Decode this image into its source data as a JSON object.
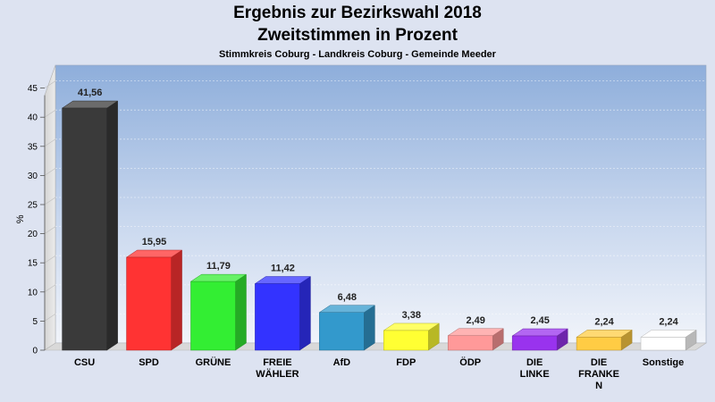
{
  "chart_data": {
    "type": "bar",
    "title": "Ergebnis zur Bezirkswahl 2018",
    "title2": "Zweitstimmen in Prozent",
    "subtitle": "Stimmkreis Coburg - Landkreis Coburg - Gemeinde Meeder",
    "ylabel": "%",
    "ylim": [
      0,
      45
    ],
    "yticks": [
      "0",
      "5",
      "10",
      "15",
      "20",
      "25",
      "30",
      "35",
      "40",
      "45"
    ],
    "categories": [
      [
        "CSU"
      ],
      [
        "SPD"
      ],
      [
        "GRÜNE"
      ],
      [
        "FREIE",
        "WÄHLER"
      ],
      [
        "AfD"
      ],
      [
        "FDP"
      ],
      [
        "ÖDP"
      ],
      [
        "DIE",
        "LINKE"
      ],
      [
        "DIE",
        "FRANKE",
        "N"
      ],
      [
        "Sonstige"
      ]
    ],
    "values": [
      41.56,
      15.95,
      11.79,
      11.42,
      6.48,
      3.38,
      2.49,
      2.45,
      2.24,
      2.24
    ],
    "value_labels": [
      "41,56",
      "15,95",
      "11,79",
      "11,42",
      "6,48",
      "3,38",
      "2,49",
      "2,45",
      "2,24",
      "2,24"
    ],
    "colors": [
      "#3a3a3a",
      "#ff3333",
      "#33ee33",
      "#3333ff",
      "#3399cc",
      "#ffff33",
      "#ff9999",
      "#9933ee",
      "#ffcc44",
      "#ffffff"
    ],
    "grid": true
  }
}
